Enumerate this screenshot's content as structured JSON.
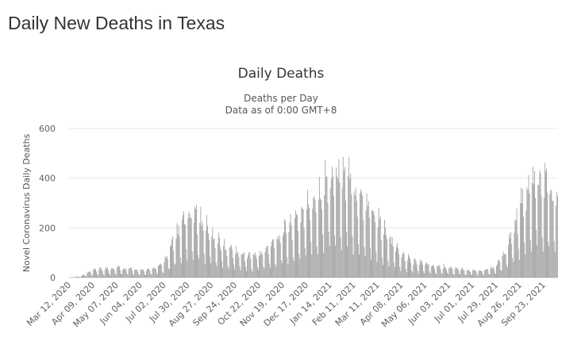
{
  "page": {
    "heading": "Daily New Deaths in Texas"
  },
  "chart_data": {
    "type": "bar",
    "title": "Daily Deaths",
    "subtitle": "Deaths per Day",
    "subtitle2": "Data as of 0:00 GMT+8",
    "ylabel": "Novel Coronavirus Daily Deaths",
    "xlabel": "",
    "ylim": [
      0,
      600
    ],
    "yticks": [
      0,
      200,
      400,
      600
    ],
    "grid": true,
    "bar_color": "#999999",
    "xrange": [
      "2020-03-12",
      "2021-10-09"
    ],
    "xticks": [
      "Mar 12, 2020",
      "Apr 09, 2020",
      "May 07, 2020",
      "Jun 04, 2020",
      "Jul 02, 2020",
      "Jul 30, 2020",
      "Aug 27, 2020",
      "Sep 24, 2020",
      "Oct 22, 2020",
      "Nov 19, 2020",
      "Dec 17, 2020",
      "Jan 14, 2021",
      "Feb 11, 2021",
      "Mar 11, 2021",
      "Apr 08, 2021",
      "May 06, 2021",
      "Jun 03, 2021",
      "Jul 01, 2021",
      "Jul 29, 2021",
      "Aug 26, 2021",
      "Sep 23, 2021"
    ],
    "trend": [
      [
        "2020-03-12",
        0
      ],
      [
        "2020-03-26",
        5
      ],
      [
        "2020-04-09",
        25
      ],
      [
        "2020-04-23",
        30
      ],
      [
        "2020-05-07",
        35
      ],
      [
        "2020-05-21",
        30
      ],
      [
        "2020-06-04",
        25
      ],
      [
        "2020-06-18",
        28
      ],
      [
        "2020-07-02",
        50
      ],
      [
        "2020-07-16",
        150
      ],
      [
        "2020-07-30",
        220
      ],
      [
        "2020-08-06",
        230
      ],
      [
        "2020-08-13",
        200
      ],
      [
        "2020-08-27",
        150
      ],
      [
        "2020-09-10",
        110
      ],
      [
        "2020-09-24",
        90
      ],
      [
        "2020-10-08",
        75
      ],
      [
        "2020-10-22",
        80
      ],
      [
        "2020-11-05",
        110
      ],
      [
        "2020-11-19",
        160
      ],
      [
        "2020-12-03",
        190
      ],
      [
        "2020-12-17",
        240
      ],
      [
        "2020-12-31",
        290
      ],
      [
        "2021-01-14",
        350
      ],
      [
        "2021-01-28",
        360
      ],
      [
        "2021-02-04",
        340
      ],
      [
        "2021-02-11",
        300
      ],
      [
        "2021-02-25",
        260
      ],
      [
        "2021-03-11",
        200
      ],
      [
        "2021-03-25",
        130
      ],
      [
        "2021-04-08",
        80
      ],
      [
        "2021-04-22",
        55
      ],
      [
        "2021-05-06",
        50
      ],
      [
        "2021-05-20",
        40
      ],
      [
        "2021-06-03",
        35
      ],
      [
        "2021-06-17",
        28
      ],
      [
        "2021-07-01",
        25
      ],
      [
        "2021-07-15",
        25
      ],
      [
        "2021-07-29",
        40
      ],
      [
        "2021-08-12",
        110
      ],
      [
        "2021-08-26",
        240
      ],
      [
        "2021-09-09",
        330
      ],
      [
        "2021-09-23",
        340
      ],
      [
        "2021-10-02",
        300
      ],
      [
        "2021-10-09",
        260
      ]
    ],
    "weekly_pattern": [
      1.1,
      1.3,
      1.25,
      1.2,
      0.95,
      0.5,
      0.35
    ]
  }
}
